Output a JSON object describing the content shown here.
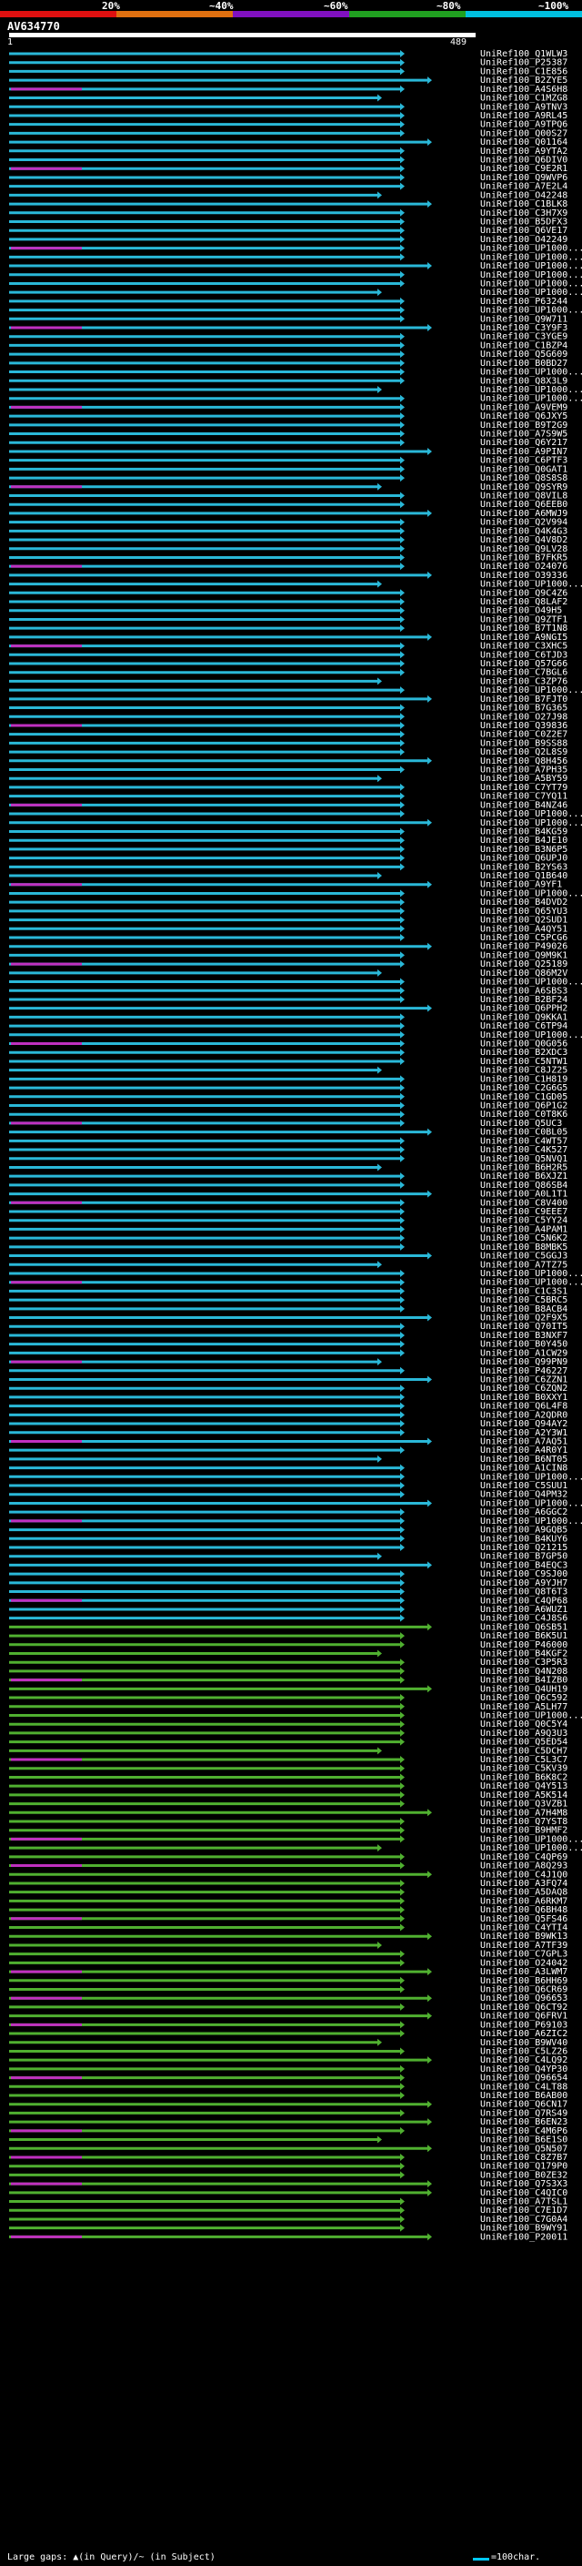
{
  "query": {
    "name": "AV634770",
    "start": "1",
    "end": "489"
  },
  "scale": {
    "labels": [
      "20%",
      "~40%",
      "~60%",
      "~80%",
      "~100%"
    ],
    "colors": [
      "#e01010",
      "#e07010",
      "#8010c0",
      "#20a020",
      "#00c0e0"
    ]
  },
  "footer": {
    "gaps": "Large gaps: ▲(in Query)/~ (in Subject)",
    "scale": "=100char."
  },
  "hit_colors": {
    "cyan": "#2ab8d8",
    "green": "#50b030",
    "magenta": "#c030c0",
    "gray": "#8a8a8a"
  },
  "hits": [
    "UniRef100_Q1WLW3",
    "UniRef100_P25387",
    "UniRef100_C1E856",
    "UniRef100_B2ZYE5",
    "UniRef100_A4S6H8",
    "UniRef100_C1MZG8",
    "UniRef100_A9TNV3",
    "UniRef100_A9RL45",
    "UniRef100_A9TPQ6",
    "UniRef100_Q00S27",
    "UniRef100_Q01164",
    "UniRef100_A9YTA2",
    "UniRef100_Q6DIV0",
    "UniRef100_C9E2R1",
    "UniRef100_Q9WVP6",
    "UniRef100_A7E2L4",
    "UniRef100_O42248",
    "UniRef100_C1BLK8",
    "UniRef100_C3H7X9",
    "UniRef100_B5DFX3",
    "UniRef100_Q6VE17",
    "UniRef100_O42249",
    "UniRef100_UP1000...",
    "UniRef100_UP1000...",
    "UniRef100_UP1000...",
    "UniRef100_UP1000...",
    "UniRef100_UP1000...",
    "UniRef100_UP1000...",
    "UniRef100_P63244",
    "UniRef100_UP1000...",
    "UniRef100_Q9W711",
    "UniRef100_C3Y9F3",
    "UniRef100_C3YGE9",
    "UniRef100_C1BZP4",
    "UniRef100_Q5G609",
    "UniRef100_B0BD27",
    "UniRef100_UP1000...",
    "UniRef100_Q8X3L9",
    "UniRef100_UP1000...",
    "UniRef100_UP1000...",
    "UniRef100_A9VEM9",
    "UniRef100_Q6JXY5",
    "UniRef100_B9T2G9",
    "UniRef100_A7S9W5",
    "UniRef100_Q6Y217",
    "UniRef100_A9PIN7",
    "UniRef100_C6PTF3",
    "UniRef100_Q0GAT1",
    "UniRef100_Q8S8S8",
    "UniRef100_Q9SYR9",
    "UniRef100_Q8VIL8",
    "UniRef100_Q6EEB0",
    "UniRef100_A6MWJ9",
    "UniRef100_Q2V994",
    "UniRef100_Q4K4G3",
    "UniRef100_Q4V8D2",
    "UniRef100_Q9LV28",
    "UniRef100_B7FKR5",
    "UniRef100_O24076",
    "UniRef100_O39336",
    "UniRef100_UP1000...",
    "UniRef100_Q9C4Z6",
    "UniRef100_Q8LAF2",
    "UniRef100_O49H5",
    "UniRef100_Q9ZTF1",
    "UniRef100_B7T1N8",
    "UniRef100_A9NGI5",
    "UniRef100_C3XHC5",
    "UniRef100_C6TJD3",
    "UniRef100_Q57G66",
    "UniRef100_C7BGL6",
    "UniRef100_C3ZP76",
    "UniRef100_UP1000...",
    "UniRef100_B7FJT0",
    "UniRef100_B7G365",
    "UniRef100_O27J98",
    "UniRef100_Q39836",
    "UniRef100_C0Z2E7",
    "UniRef100_B9SS88",
    "UniRef100_Q2L8S9",
    "UniRef100_Q8H456",
    "UniRef100_A7PH35",
    "UniRef100_A5BY59",
    "UniRef100_C7YT79",
    "UniRef100_C7YQ11",
    "UniRef100_B4NZ46",
    "UniRef100_UP1000...",
    "UniRef100_UP1000...",
    "UniRef100_B4KG59",
    "UniRef100_B4JE10",
    "UniRef100_B3N6P5",
    "UniRef100_Q6UPJ0",
    "UniRef100_B2YS63",
    "UniRef100_Q1B640",
    "UniRef100_A9YF1",
    "UniRef100_UP1000...",
    "UniRef100_B4DVD2",
    "UniRef100_Q65YU3",
    "UniRef100_Q2SUD1",
    "UniRef100_A4QY51",
    "UniRef100_C5PCG6",
    "UniRef100_P49026",
    "UniRef100_Q9M9K1",
    "UniRef100_Q25189",
    "UniRef100_Q86M2V",
    "UniRef100_UP1000...",
    "UniRef100_A6SBS3",
    "UniRef100_B2BF24",
    "UniRef100_Q6PPH2",
    "UniRef100_Q9KKA1",
    "UniRef100_C6TP94",
    "UniRef100_UP1000...",
    "UniRef100_Q0G056",
    "UniRef100_B2XDC3",
    "UniRef100_C5NTW1",
    "UniRef100_C8JZ25",
    "UniRef100_C1H819",
    "UniRef100_C2G6G5",
    "UniRef100_C1GD05",
    "UniRef100_Q6P1G2",
    "UniRef100_C0T8K6",
    "UniRef100_Q5UC3",
    "UniRef100_C0BL05",
    "UniRef100_C4WT57",
    "UniRef100_C4K527",
    "UniRef100_Q5NVQ1",
    "UniRef100_B6H2R5",
    "UniRef100_B6XJZ1",
    "UniRef100_Q86SB4",
    "UniRef100_A0L1T1",
    "UniRef100_C8V400",
    "UniRef100_C9EEE7",
    "UniRef100_C5YY24",
    "UniRef100_A4PAM1",
    "UniRef100_C5N6K2",
    "UniRef100_B8MBK5",
    "UniRef100_C5GGJ3",
    "UniRef100_A7TZ75",
    "UniRef100_UP1000...",
    "UniRef100_UP1000...",
    "UniRef100_C1C3S1",
    "UniRef100_C5BRC5",
    "UniRef100_B8ACB4",
    "UniRef100_Q2F9X5",
    "UniRef100_Q70IT5",
    "UniRef100_B3NXF7",
    "UniRef100_B0Y450",
    "UniRef100_A1CW29",
    "UniRef100_Q99PN9",
    "UniRef100_P46227",
    "UniRef100_C6ZZN1",
    "UniRef100_C6ZQN2",
    "UniRef100_B0XXY1",
    "UniRef100_Q6L4F8",
    "UniRef100_A2QDR0",
    "UniRef100_Q94AY2",
    "UniRef100_A2Y3W1",
    "UniRef100_A7AQ51",
    "UniRef100_A4R0Y1",
    "UniRef100_B6NT05",
    "UniRef100_A1CIN8",
    "UniRef100_UP1000...",
    "UniRef100_C5SUU1",
    "UniRef100_Q4PM32",
    "UniRef100_UP1000...",
    "UniRef100_A6GGC2",
    "UniRef100_UP1000...",
    "UniRef100_A9GQB5",
    "UniRef100_B4KUY6",
    "UniRef100_Q21215",
    "UniRef100_B7GP50",
    "UniRef100_B4EQC3",
    "UniRef100_C9SJ00",
    "UniRef100_A9YJH7",
    "UniRef100_Q8T6T3",
    "UniRef100_C4QP68",
    "UniRef100_A6WUZ1",
    "UniRef100_C4J8S6",
    "UniRef100_Q6SB51",
    "UniRef100_B6K5U1",
    "UniRef100_P46000",
    "UniRef100_B4KGF2",
    "UniRef100_C3P5R3",
    "UniRef100_Q4N208",
    "UniRef100_B4IZB0",
    "UniRef100_Q4UH19",
    "UniRef100_Q6C592",
    "UniRef100_A5LH77",
    "UniRef100_UP1000...",
    "UniRef100_Q0C5Y4",
    "UniRef100_A9Q3U3",
    "UniRef100_Q5ED54",
    "UniRef100_C5DCH7",
    "UniRef100_C5L3C7",
    "UniRef100_C5KV39",
    "UniRef100_B6K8C2",
    "UniRef100_Q4Y513",
    "UniRef100_A5K514",
    "UniRef100_Q3VZB1",
    "UniRef100_A7H4M8",
    "UniRef100_Q7YST8",
    "UniRef100_B9HMF2",
    "UniRef100_UP1000...",
    "UniRef100_UP1000...",
    "UniRef100_C4QP69",
    "UniRef100_A8Q293",
    "UniRef100_C4J1Q0",
    "UniRef100_A3FQ74",
    "UniRef100_A5DAQ8",
    "UniRef100_A6RKM7",
    "UniRef100_Q6BH48",
    "UniRef100_Q5FS46",
    "UniRef100_C4YTI4",
    "UniRef100_B9WK13",
    "UniRef100_A7TF39",
    "UniRef100_C7GPL3",
    "UniRef100_O24042",
    "UniRef100_A3LWM7",
    "UniRef100_B6HH69",
    "UniRef100_Q6CR69",
    "UniRef100_Q96653",
    "UniRef100_Q6CT92",
    "UniRef100_Q6FRV1",
    "UniRef100_P69103",
    "UniRef100_A6ZIC2",
    "UniRef100_B9WV40",
    "UniRef100_C5LZ26",
    "UniRef100_C4LQ92",
    "UniRef100_Q4YP30",
    "UniRef100_Q96654",
    "UniRef100_C4LT88",
    "UniRef100_B6AB00",
    "UniRef100_Q6CN17",
    "UniRef100_Q7RS49",
    "UniRef100_B6EN23",
    "UniRef100_C4M6P6",
    "UniRef100_B6E1S0",
    "UniRef100_Q5N507",
    "UniRef100_C8Z7B7",
    "UniRef100_Q179P0",
    "UniRef100_B0ZE32",
    "UniRef100_Q7S3X3",
    "UniRef100_C4QIC0",
    "UniRef100_A7TSL1",
    "UniRef100_C7E1D7",
    "UniRef100_C7G0A4",
    "UniRef100_B9WY91",
    "UniRef100_P20011"
  ]
}
